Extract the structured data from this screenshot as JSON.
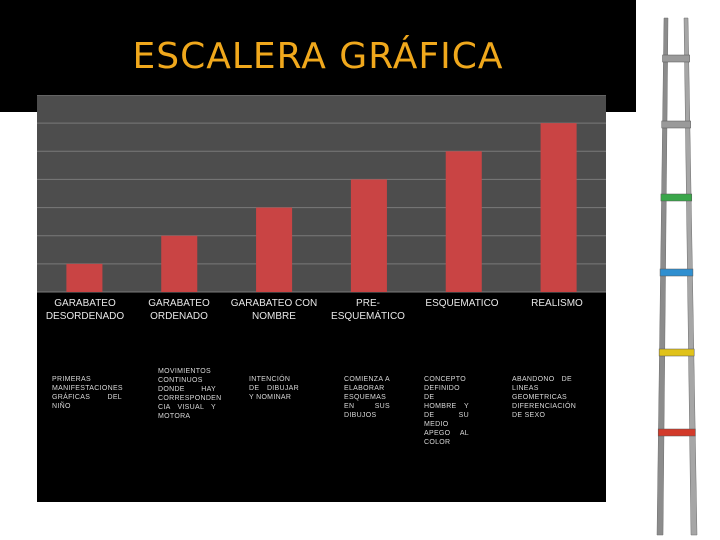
{
  "title": "ESCALERA GRÁFICA",
  "chart_data": {
    "type": "bar",
    "categories": [
      "GARABATEO DESORDENADO",
      "GARABATEO ORDENADO",
      "GARABATEO CON NOMBRE",
      "PRE-ESQUEMÁTICO",
      "ESQUEMATICO",
      "REALISMO"
    ],
    "values": [
      1,
      2,
      3,
      4,
      5,
      6
    ],
    "ylim": [
      0,
      7
    ],
    "grid": true,
    "bar_color": "#c94444",
    "grid_color": "#7a7a7a",
    "plot_bg": "#4d4d4d"
  },
  "descriptions": [
    "PRIMERAS MANIFESTACIONES GRÁFICAS DEL NIÑO",
    "MOVIMIENTOS CONTINUOS DONDE HAY CORRESPONDEN CIA VISUAL Y MOTORA",
    "INTENCIÓN DE DIBUJAR Y NOMINAR",
    "COMIENZA A ELABORAR ESQUEMAS EN SUS DIBUJOS",
    "CONCEPTO DEFINIDO DE HOMBRE Y DE SU MEDIO APEGO AL COLOR",
    "ABANDONO DE LINEAS GEOMETRICAS DIFERENCIACIÓN DE SEXO"
  ],
  "ladder": {
    "rung_colors": [
      "#9a9a9a",
      "#9a9a9a",
      "#3aa64a",
      "#2f8fd0",
      "#e0c21a",
      "#d23a2a"
    ]
  }
}
